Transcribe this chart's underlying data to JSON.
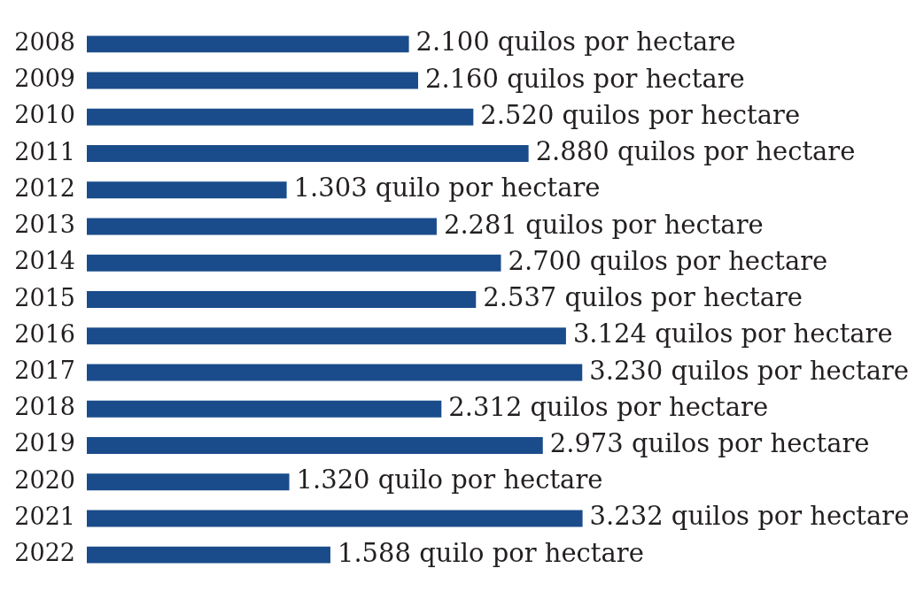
{
  "chart_data": {
    "type": "bar",
    "orientation": "horizontal",
    "categories": [
      "2008",
      "2009",
      "2010",
      "2011",
      "2012",
      "2013",
      "2014",
      "2015",
      "2016",
      "2017",
      "2018",
      "2019",
      "2020",
      "2021",
      "2022"
    ],
    "values": [
      2100,
      2160,
      2520,
      2880,
      1303,
      2281,
      2700,
      2537,
      3124,
      3230,
      2312,
      2973,
      1320,
      3232,
      1588
    ],
    "value_labels": [
      "2.100 quilos por hectare",
      "2.160 quilos por hectare",
      "2.520 quilos por hectare",
      "2.880 quilos por hectare",
      "1.303 quilo por hectare",
      "2.281 quilos por hectare",
      "2.700 quilos por hectare",
      "2.537 quilos por hectare",
      "3.124 quilos por hectare",
      "3.230 quilos por hectare",
      "2.312 quilos por hectare",
      "2.973 quilos por hectare",
      "1.320 quilo por hectare",
      "3.232 quilos por hectare",
      "1.588 quilo por hectare"
    ],
    "color": "#1a4c8b",
    "tick_labels": "y"
  }
}
